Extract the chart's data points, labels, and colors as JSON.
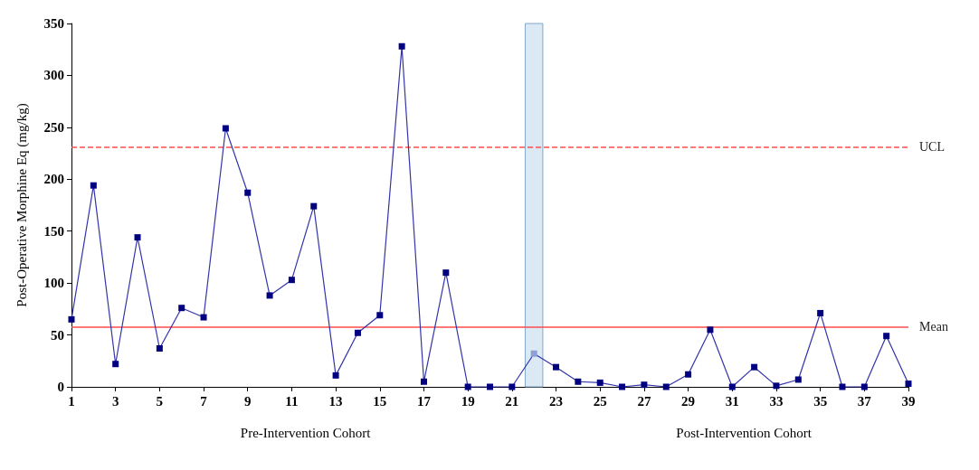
{
  "chart_data": {
    "type": "line",
    "ylabel": "Post-Operative Morphine Eq (mg/kg)",
    "x": [
      1,
      2,
      3,
      4,
      5,
      6,
      7,
      8,
      9,
      10,
      11,
      12,
      13,
      14,
      15,
      16,
      17,
      18,
      19,
      20,
      21,
      22,
      23,
      24,
      25,
      26,
      27,
      28,
      29,
      30,
      31,
      32,
      33,
      34,
      35,
      36,
      37,
      38,
      39
    ],
    "series": [
      {
        "color": "#3333aa",
        "values": [
          65,
          194,
          22,
          144,
          37,
          76,
          67,
          249,
          187,
          88,
          103,
          174,
          11,
          52,
          69,
          328,
          5,
          110,
          0,
          0,
          0,
          32,
          19,
          5,
          4,
          0,
          2,
          0,
          12,
          55,
          0,
          19,
          1,
          7,
          71,
          0,
          0,
          49,
          3
        ],
        "colors": [
          "#000080",
          "#000080",
          "#000080",
          "#000080",
          "#000080",
          "#000080",
          "#000080",
          "#000080",
          "#000080",
          "#000080",
          "#000080",
          "#000080",
          "#000080",
          "#000080",
          "#000080",
          "#000080",
          "#000080",
          "#000080",
          "#000080",
          "#000080",
          "#000080",
          "#8f9fd8",
          "#000080",
          "#000080",
          "#000080",
          "#000080",
          "#000080",
          "#000080",
          "#000080",
          "#000080",
          "#000080",
          "#000080",
          "#000080",
          "#000080",
          "#000080",
          "#000080",
          "#000080",
          "#000080",
          "#000080"
        ]
      }
    ],
    "xlim": [
      1,
      39
    ],
    "xticks": [
      1,
      3,
      5,
      7,
      9,
      11,
      13,
      15,
      17,
      19,
      21,
      23,
      25,
      27,
      29,
      31,
      33,
      35,
      37,
      39
    ],
    "ylim": [
      0,
      350
    ],
    "yticks": [
      0,
      50,
      100,
      150,
      200,
      250,
      300,
      350
    ],
    "ref_lines": [
      {
        "axis": "y",
        "value": 231,
        "label": "UCL",
        "color": "#ff4d4d",
        "line_style": "dashed"
      },
      {
        "axis": "y",
        "value": 58,
        "label": "Mean",
        "color": "#ff4d4d",
        "line_style": "solid"
      }
    ],
    "bands": [
      {
        "axis": "x",
        "from": 21.6,
        "to": 22.4,
        "color": "#dbe9f5"
      }
    ],
    "annotations": [
      "Pre-Intervention Cohort",
      "Post-Intervention Cohort"
    ],
    "marker": "square",
    "line_style": "solid",
    "grid": false
  }
}
